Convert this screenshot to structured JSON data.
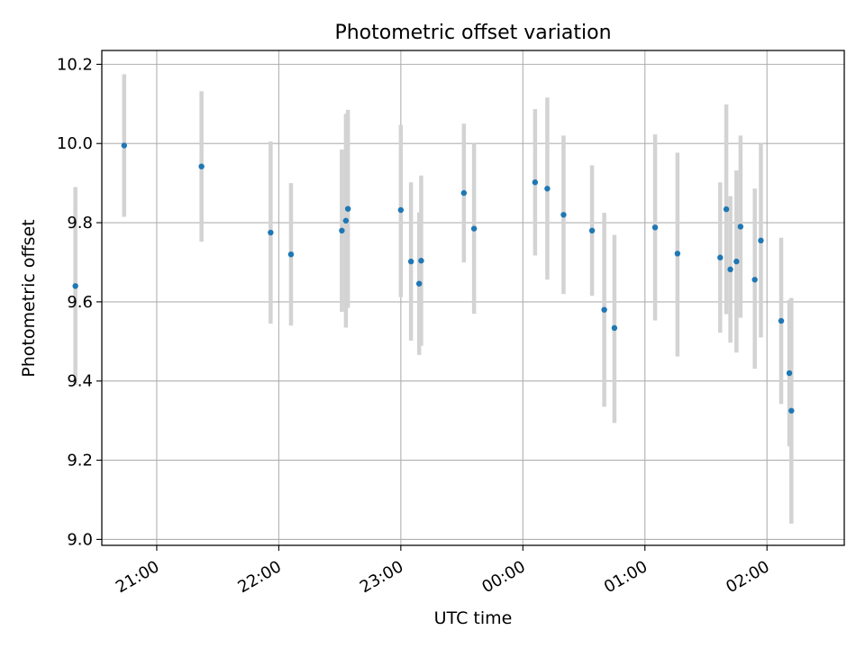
{
  "chart_data": {
    "type": "scatter",
    "title": "Photometric offset variation",
    "xlabel": "UTC time",
    "ylabel": "Photometric offset",
    "x_axis_type": "time",
    "xlim": [
      "20:33",
      "02:38"
    ],
    "ylim": [
      8.985,
      10.235
    ],
    "x_ticks": [
      "21:00",
      "22:00",
      "23:00",
      "00:00",
      "01:00",
      "02:00"
    ],
    "y_ticks": [
      "9.0",
      "9.2",
      "9.4",
      "9.6",
      "9.8",
      "10.0",
      "10.2"
    ],
    "grid": true,
    "legend": "none",
    "point_color": "#1f77b4",
    "errorbar_color": "#d3d3d3",
    "points": [
      {
        "x": "20:20",
        "y": 9.64,
        "ylow": 9.39,
        "yhigh": 9.89
      },
      {
        "x": "20:44",
        "y": 9.995,
        "ylow": 9.815,
        "yhigh": 10.175
      },
      {
        "x": "21:22",
        "y": 9.942,
        "ylow": 9.752,
        "yhigh": 10.132
      },
      {
        "x": "21:56",
        "y": 9.775,
        "ylow": 9.545,
        "yhigh": 10.005
      },
      {
        "x": "22:06",
        "y": 9.72,
        "ylow": 9.54,
        "yhigh": 9.9
      },
      {
        "x": "22:31",
        "y": 9.78,
        "ylow": 9.575,
        "yhigh": 9.985
      },
      {
        "x": "22:33",
        "y": 9.805,
        "ylow": 9.535,
        "yhigh": 10.075
      },
      {
        "x": "22:34",
        "y": 9.835,
        "ylow": 9.585,
        "yhigh": 10.085
      },
      {
        "x": "23:00",
        "y": 9.832,
        "ylow": 9.612,
        "yhigh": 10.047
      },
      {
        "x": "23:05",
        "y": 9.702,
        "ylow": 9.502,
        "yhigh": 9.902
      },
      {
        "x": "23:09",
        "y": 9.646,
        "ylow": 9.466,
        "yhigh": 9.826
      },
      {
        "x": "23:10",
        "y": 9.704,
        "ylow": 9.489,
        "yhigh": 9.919
      },
      {
        "x": "23:31",
        "y": 9.875,
        "ylow": 9.7,
        "yhigh": 10.05
      },
      {
        "x": "23:36",
        "y": 9.785,
        "ylow": 9.57,
        "yhigh": 10.0
      },
      {
        "x": "00:06",
        "y": 9.902,
        "ylow": 9.717,
        "yhigh": 10.087
      },
      {
        "x": "00:12",
        "y": 9.886,
        "ylow": 9.656,
        "yhigh": 10.116
      },
      {
        "x": "00:20",
        "y": 9.82,
        "ylow": 9.62,
        "yhigh": 10.02
      },
      {
        "x": "00:34",
        "y": 9.78,
        "ylow": 9.615,
        "yhigh": 9.945
      },
      {
        "x": "00:40",
        "y": 9.58,
        "ylow": 9.335,
        "yhigh": 9.825
      },
      {
        "x": "00:45",
        "y": 9.534,
        "ylow": 9.294,
        "yhigh": 9.769
      },
      {
        "x": "01:05",
        "y": 9.788,
        "ylow": 9.553,
        "yhigh": 10.023
      },
      {
        "x": "01:16",
        "y": 9.722,
        "ylow": 9.462,
        "yhigh": 9.977
      },
      {
        "x": "01:37",
        "y": 9.712,
        "ylow": 9.522,
        "yhigh": 9.902
      },
      {
        "x": "01:40",
        "y": 9.834,
        "ylow": 9.569,
        "yhigh": 10.099
      },
      {
        "x": "01:42",
        "y": 9.682,
        "ylow": 9.497,
        "yhigh": 9.867
      },
      {
        "x": "01:45",
        "y": 9.702,
        "ylow": 9.472,
        "yhigh": 9.932
      },
      {
        "x": "01:47",
        "y": 9.79,
        "ylow": 9.56,
        "yhigh": 10.02
      },
      {
        "x": "01:54",
        "y": 9.656,
        "ylow": 9.431,
        "yhigh": 9.886
      },
      {
        "x": "01:57",
        "y": 9.755,
        "ylow": 9.51,
        "yhigh": 10.0
      },
      {
        "x": "02:07",
        "y": 9.552,
        "ylow": 9.342,
        "yhigh": 9.762
      },
      {
        "x": "02:11",
        "y": 9.42,
        "ylow": 9.235,
        "yhigh": 9.605
      },
      {
        "x": "02:12",
        "y": 9.325,
        "ylow": 9.04,
        "yhigh": 9.61
      }
    ]
  }
}
